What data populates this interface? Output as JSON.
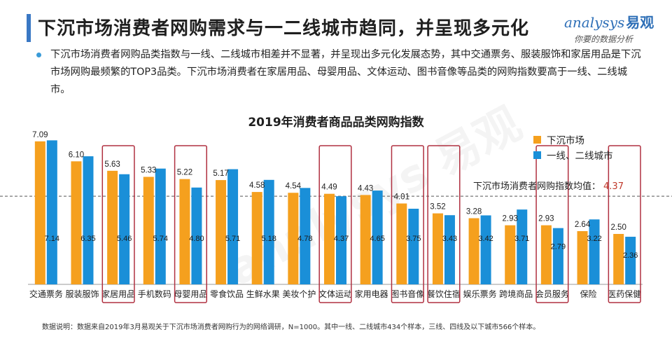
{
  "header": {
    "title": "下沉市场消费者网购需求与一二线城市趋同，并呈现多元化",
    "brand_en": "analysys",
    "brand_cn": "易观",
    "brand_slogan": "你要的数据分析"
  },
  "description": "下沉市场消费者网购品类指数与一线、二线城市相差并不显著，并呈现出多元化发展态势，其中交通票务、服装服饰和家居用品是下沉市场网购最频繁的TOP3品类。下沉市场消费者在家居用品、母婴用品、文体运动、图书音像等品类的网购指数要高于一线、二线城市。",
  "watermark": "analysys 易观",
  "footnote": "数据说明：数据来自2019年3月易观关于下沉市场消费者网购行为的网络调研，N=1000。其中一线、二线城市434个样本，三线、四线及以下城市566个样本。",
  "chart_data": {
    "type": "bar",
    "title": "2019年消费者商品品类网购指数",
    "categories": [
      "交通票务",
      "服装服饰",
      "家居用品",
      "手机数码",
      "母婴用品",
      "零食饮品",
      "生鲜水果",
      "美妆个护",
      "文体运动",
      "家用电器",
      "图书音像",
      "餐饮住宿",
      "娱乐票务",
      "跨境商品",
      "会员服务",
      "保险",
      "医药保健"
    ],
    "series": [
      {
        "name": "下沉市场",
        "color": "#f5a01e",
        "values": [
          7.09,
          6.1,
          5.63,
          5.33,
          5.22,
          5.17,
          4.58,
          4.54,
          4.49,
          4.43,
          4.01,
          3.52,
          3.28,
          2.93,
          2.93,
          2.64,
          2.5
        ]
      },
      {
        "name": "一线、二线城市",
        "color": "#1a8fd8",
        "values": [
          7.14,
          6.35,
          5.46,
          5.74,
          4.8,
          5.71,
          5.18,
          4.78,
          4.37,
          4.65,
          3.75,
          3.43,
          3.42,
          3.71,
          2.79,
          3.22,
          2.36
        ]
      }
    ],
    "reference_line": {
      "label": "下沉市场消费者网购指数均值：",
      "value": 4.37
    },
    "highlighted_categories": [
      "家居用品",
      "母婴用品",
      "文体运动",
      "图书音像",
      "餐饮住宿",
      "会员服务",
      "医药保健"
    ],
    "ylim": [
      0,
      7.5
    ],
    "grid": false,
    "legend_position": "top-right",
    "highlight_color": "#b03040"
  }
}
